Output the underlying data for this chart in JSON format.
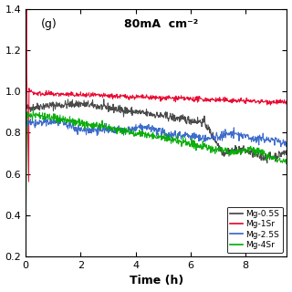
{
  "title": "80mA  cm⁻²",
  "label_g": "(g)",
  "xlabel": "Time (h)",
  "xlim": [
    0,
    9.5
  ],
  "ylim": [
    0.2,
    1.4
  ],
  "yticks": [
    0.2,
    0.4,
    0.6,
    0.8,
    1.0,
    1.2,
    1.4
  ],
  "xticks": [
    0,
    2,
    4,
    6,
    8
  ],
  "legend_labels": [
    "Mg-0.5S",
    "Mg-1Sr",
    "Mg-2.5S",
    "Mg-4Sr"
  ],
  "legend_colors": [
    "#404040",
    "#e8002a",
    "#3264c8",
    "#00aa00"
  ],
  "line_colors": {
    "mg05": "#404040",
    "mg1": "#e8002a",
    "mg25": "#3264c8",
    "mg4": "#00aa00"
  },
  "background_color": "#ffffff",
  "seed": 42
}
